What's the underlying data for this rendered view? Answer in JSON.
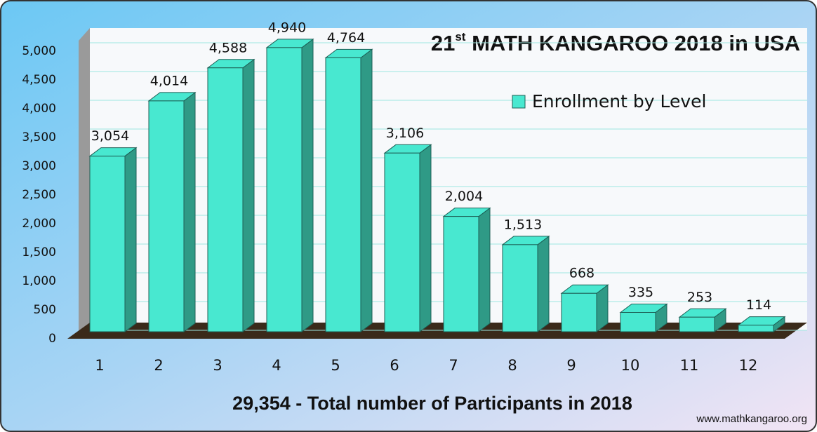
{
  "chart_data": {
    "type": "bar3d",
    "title": [
      "21",
      "st",
      " MATH KANGAROO 2018 in USA"
    ],
    "subtitle": "29,354 - Total number of Participants in 2018",
    "annotation": "www.mathkangaroo.org",
    "categories": [
      "1",
      "2",
      "3",
      "4",
      "5",
      "6",
      "7",
      "8",
      "9",
      "10",
      "11",
      "12"
    ],
    "series": [
      {
        "name": "Enrollment by Level",
        "color": "#48e8d0",
        "values": [
          3054,
          4014,
          4588,
          4940,
          4764,
          3106,
          2004,
          1513,
          668,
          335,
          253,
          114
        ],
        "value_labels": [
          "3,054",
          "4,014",
          "4,588",
          "4,940",
          "4,764",
          "3,106",
          "2,004",
          "1,513",
          "668",
          "335",
          "253",
          "114"
        ]
      }
    ],
    "ylim": [
      0,
      5000
    ],
    "yticks": [
      0,
      500,
      {
        "value": 1000,
        "label": "1,000"
      },
      {
        "value": 1500,
        "label": "1,500"
      },
      {
        "value": 2000,
        "label": "2,000"
      },
      {
        "value": 2500,
        "label": "2,500"
      },
      {
        "value": 3000,
        "label": "3,000"
      },
      {
        "value": 3500,
        "label": "3,500"
      },
      {
        "value": 4000,
        "label": "4,000"
      },
      {
        "value": 4500,
        "label": "4,500"
      },
      {
        "value": 5000,
        "label": "5,000"
      }
    ],
    "grid": true,
    "legend": "upper right"
  }
}
